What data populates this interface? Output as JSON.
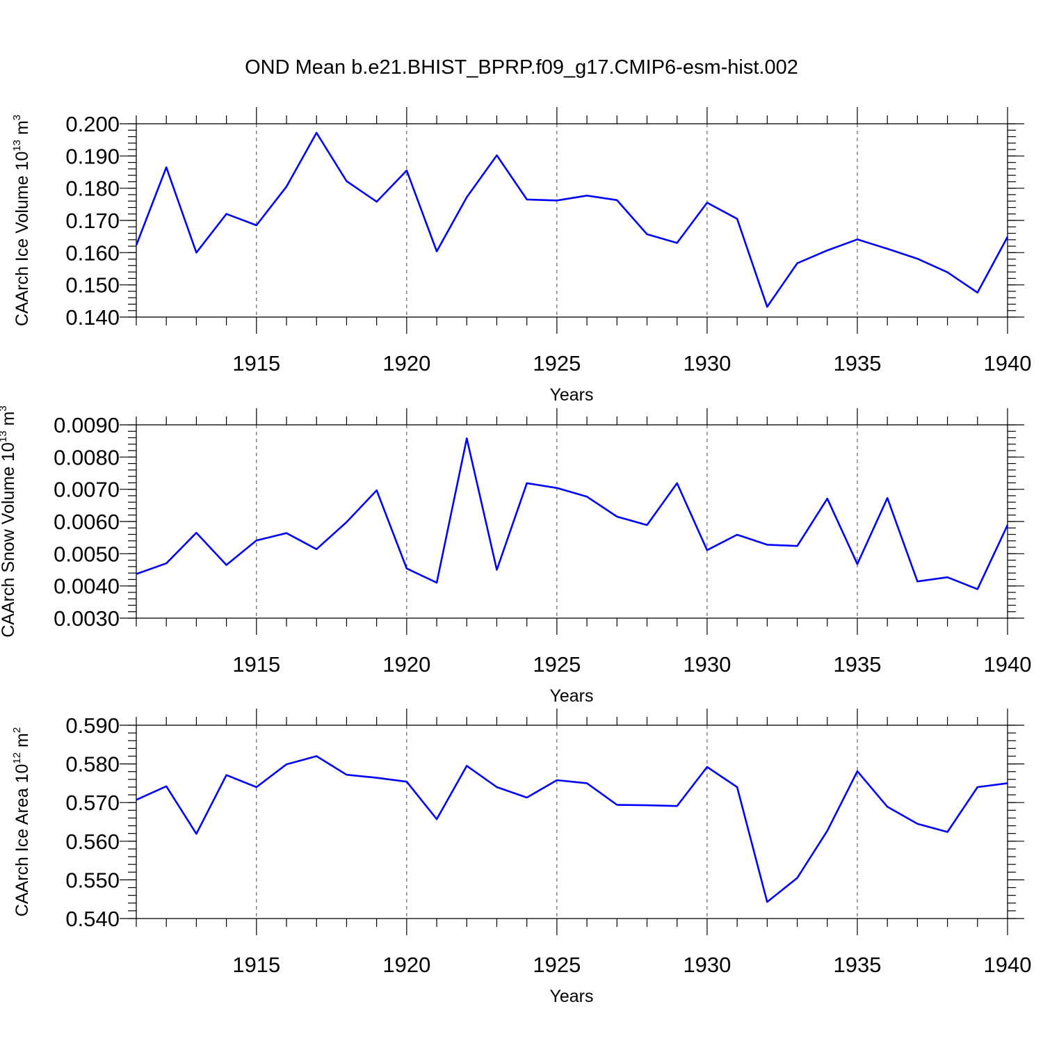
{
  "figure": {
    "title": "OND Mean b.e21.BHIST_BPRP.f09_g17.CMIP6-esm-hist.002"
  },
  "chart_data": [
    {
      "type": "line",
      "ylabel": "CAArch Ice Volume 10",
      "ylabel_exp": "13",
      "ylabel_unit": " m",
      "ylabel_unit_exp": "3",
      "xlabel": "Years",
      "xlim": [
        1911,
        1940
      ],
      "ylim": [
        0.14,
        0.2
      ],
      "yticks": [
        0.14,
        0.15,
        0.16,
        0.17,
        0.18,
        0.19,
        0.2
      ],
      "ytick_labels": [
        "0.140",
        "0.150",
        "0.160",
        "0.170",
        "0.180",
        "0.190",
        "0.200"
      ],
      "xticks": [
        1915,
        1920,
        1925,
        1930,
        1935,
        1940
      ],
      "xtick_labels": [
        "1915",
        "1920",
        "1925",
        "1930",
        "1935",
        "1940"
      ],
      "grid": "dashed vertical at major x ticks",
      "line_color": "#0000ff",
      "x": [
        1911,
        1912,
        1913,
        1914,
        1915,
        1916,
        1917,
        1918,
        1919,
        1920,
        1921,
        1922,
        1923,
        1924,
        1925,
        1926,
        1927,
        1928,
        1929,
        1930,
        1931,
        1932,
        1933,
        1934,
        1935,
        1936,
        1937,
        1938,
        1939,
        1940
      ],
      "y": [
        0.1623,
        0.1865,
        0.16,
        0.172,
        0.1685,
        0.1805,
        0.1972,
        0.1822,
        0.1758,
        0.1855,
        0.1604,
        0.1772,
        0.1902,
        0.1765,
        0.1762,
        0.1777,
        0.1763,
        0.1657,
        0.163,
        0.1755,
        0.1705,
        0.1432,
        0.1567,
        0.1607,
        0.1641,
        0.1612,
        0.1581,
        0.1539,
        0.1476,
        0.1649
      ]
    },
    {
      "type": "line",
      "ylabel": "CAArch Snow Volume 10",
      "ylabel_exp": "13",
      "ylabel_unit": " m",
      "ylabel_unit_exp": "3",
      "xlabel": "Years",
      "xlim": [
        1911,
        1940
      ],
      "ylim": [
        0.003,
        0.009
      ],
      "yticks": [
        0.003,
        0.004,
        0.005,
        0.006,
        0.007,
        0.008,
        0.009
      ],
      "ytick_labels": [
        "0.0030",
        "0.0040",
        "0.0050",
        "0.0060",
        "0.0070",
        "0.0080",
        "0.0090"
      ],
      "xticks": [
        1915,
        1920,
        1925,
        1930,
        1935,
        1940
      ],
      "xtick_labels": [
        "1915",
        "1920",
        "1925",
        "1930",
        "1935",
        "1940"
      ],
      "grid": "dashed vertical at major x ticks",
      "line_color": "#0000ff",
      "x": [
        1911,
        1912,
        1913,
        1914,
        1915,
        1916,
        1917,
        1918,
        1919,
        1920,
        1921,
        1922,
        1923,
        1924,
        1925,
        1926,
        1927,
        1928,
        1929,
        1930,
        1931,
        1932,
        1933,
        1934,
        1935,
        1936,
        1937,
        1938,
        1939,
        1940
      ],
      "y": [
        0.00437,
        0.0047,
        0.00565,
        0.00465,
        0.00541,
        0.00564,
        0.00514,
        0.00598,
        0.00697,
        0.00454,
        0.0041,
        0.00858,
        0.0045,
        0.00719,
        0.00704,
        0.00677,
        0.00615,
        0.00589,
        0.00719,
        0.00511,
        0.00559,
        0.00528,
        0.00524,
        0.00671,
        0.00468,
        0.00673,
        0.00414,
        0.00427,
        0.0039,
        0.00589
      ]
    },
    {
      "type": "line",
      "ylabel": "CAArch Ice Area 10",
      "ylabel_exp": "12",
      "ylabel_unit": " m",
      "ylabel_unit_exp": "2",
      "xlabel": "Years",
      "xlim": [
        1911,
        1940
      ],
      "ylim": [
        0.54,
        0.59
      ],
      "yticks": [
        0.54,
        0.55,
        0.56,
        0.57,
        0.58,
        0.59
      ],
      "ytick_labels": [
        "0.540",
        "0.550",
        "0.560",
        "0.570",
        "0.580",
        "0.590"
      ],
      "xticks": [
        1915,
        1920,
        1925,
        1930,
        1935,
        1940
      ],
      "xtick_labels": [
        "1915",
        "1920",
        "1925",
        "1930",
        "1935",
        "1940"
      ],
      "grid": "dashed vertical at major x ticks",
      "line_color": "#0000ff",
      "x": [
        1911,
        1912,
        1913,
        1914,
        1915,
        1916,
        1917,
        1918,
        1919,
        1920,
        1921,
        1922,
        1923,
        1924,
        1925,
        1926,
        1927,
        1928,
        1929,
        1930,
        1931,
        1932,
        1933,
        1934,
        1935,
        1936,
        1937,
        1938,
        1939,
        1940
      ],
      "y": [
        0.5707,
        0.5742,
        0.5619,
        0.5771,
        0.574,
        0.5799,
        0.582,
        0.5772,
        0.5764,
        0.5754,
        0.5657,
        0.5795,
        0.574,
        0.5713,
        0.5758,
        0.575,
        0.5694,
        0.5693,
        0.5691,
        0.5792,
        0.574,
        0.5443,
        0.5505,
        0.5627,
        0.5781,
        0.5689,
        0.5645,
        0.5624,
        0.574,
        0.575
      ]
    }
  ]
}
